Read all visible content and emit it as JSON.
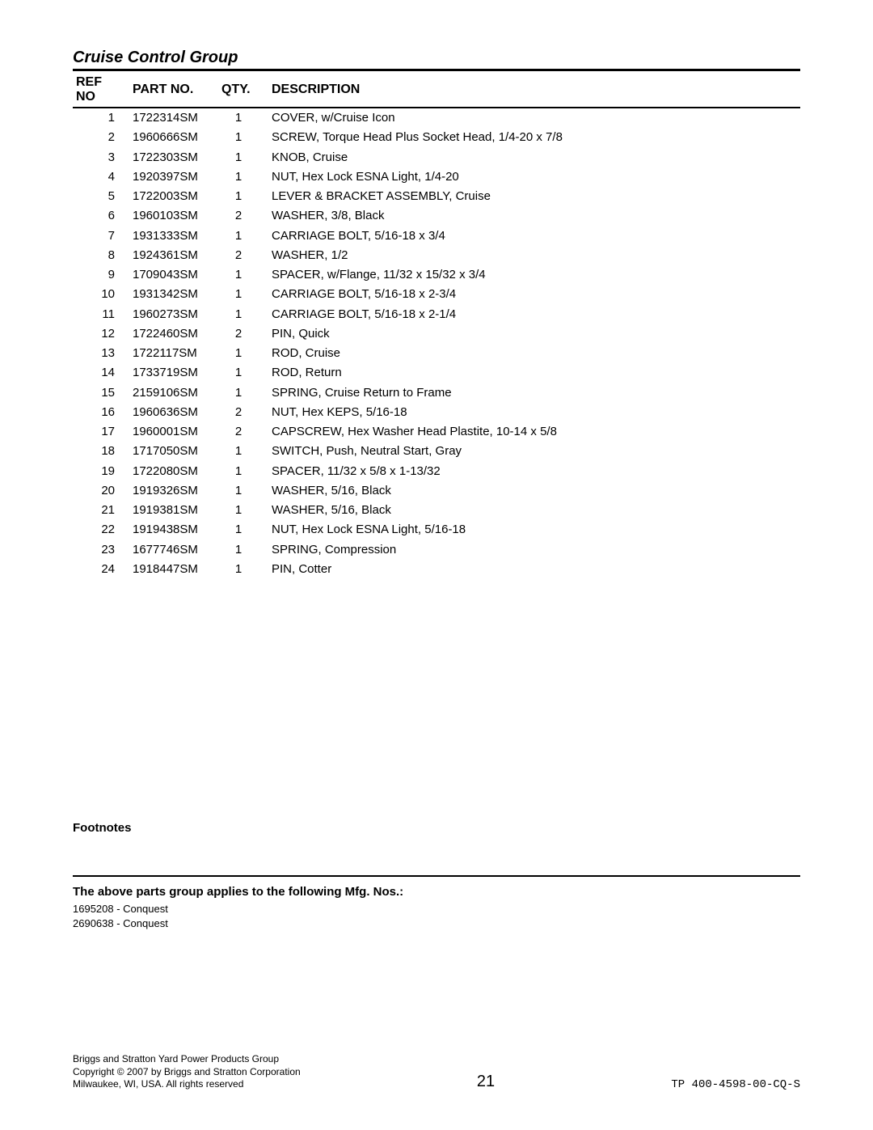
{
  "section_title": "Cruise Control Group",
  "table": {
    "headers": {
      "ref": "REF NO",
      "part": "PART NO.",
      "qty": "QTY.",
      "desc": "DESCRIPTION"
    },
    "col_widths": {
      "ref": 70,
      "part": 110,
      "qty": 50
    },
    "rows": [
      {
        "ref": "1",
        "part": "1722314SM",
        "qty": "1",
        "desc": "COVER, w/Cruise Icon"
      },
      {
        "ref": "2",
        "part": "1960666SM",
        "qty": "1",
        "desc": "SCREW, Torque Head Plus Socket Head, 1/4-20 x 7/8"
      },
      {
        "ref": "3",
        "part": "1722303SM",
        "qty": "1",
        "desc": "KNOB, Cruise"
      },
      {
        "ref": "4",
        "part": "1920397SM",
        "qty": "1",
        "desc": "NUT, Hex Lock ESNA Light, 1/4-20"
      },
      {
        "ref": "5",
        "part": "1722003SM",
        "qty": "1",
        "desc": "LEVER & BRACKET ASSEMBLY, Cruise"
      },
      {
        "ref": "6",
        "part": "1960103SM",
        "qty": "2",
        "desc": "WASHER, 3/8, Black"
      },
      {
        "ref": "7",
        "part": "1931333SM",
        "qty": "1",
        "desc": "CARRIAGE BOLT, 5/16-18 x 3/4"
      },
      {
        "ref": "8",
        "part": "1924361SM",
        "qty": "2",
        "desc": "WASHER, 1/2"
      },
      {
        "ref": "9",
        "part": "1709043SM",
        "qty": "1",
        "desc": "SPACER, w/Flange, 11/32 x 15/32 x 3/4"
      },
      {
        "ref": "10",
        "part": "1931342SM",
        "qty": "1",
        "desc": "CARRIAGE BOLT, 5/16-18 x 2-3/4"
      },
      {
        "ref": "11",
        "part": "1960273SM",
        "qty": "1",
        "desc": "CARRIAGE BOLT, 5/16-18 x 2-1/4"
      },
      {
        "ref": "12",
        "part": "1722460SM",
        "qty": "2",
        "desc": "PIN, Quick"
      },
      {
        "ref": "13",
        "part": "1722117SM",
        "qty": "1",
        "desc": "ROD, Cruise"
      },
      {
        "ref": "14",
        "part": "1733719SM",
        "qty": "1",
        "desc": "ROD, Return"
      },
      {
        "ref": "15",
        "part": "2159106SM",
        "qty": "1",
        "desc": "SPRING, Cruise Return to Frame"
      },
      {
        "ref": "16",
        "part": "1960636SM",
        "qty": "2",
        "desc": "NUT, Hex KEPS, 5/16-18"
      },
      {
        "ref": "17",
        "part": "1960001SM",
        "qty": "2",
        "desc": "CAPSCREW, Hex Washer Head Plastite, 10-14 x 5/8"
      },
      {
        "ref": "18",
        "part": "1717050SM",
        "qty": "1",
        "desc": "SWITCH, Push, Neutral Start, Gray"
      },
      {
        "ref": "19",
        "part": "1722080SM",
        "qty": "1",
        "desc": "SPACER, 11/32 x 5/8 x 1-13/32"
      },
      {
        "ref": "20",
        "part": "1919326SM",
        "qty": "1",
        "desc": "WASHER, 5/16, Black"
      },
      {
        "ref": "21",
        "part": "1919381SM",
        "qty": "1",
        "desc": "WASHER, 5/16, Black"
      },
      {
        "ref": "22",
        "part": "1919438SM",
        "qty": "1",
        "desc": "NUT, Hex Lock ESNA Light, 5/16-18"
      },
      {
        "ref": "23",
        "part": "1677746SM",
        "qty": "1",
        "desc": "SPRING, Compression"
      },
      {
        "ref": "24",
        "part": "1918447SM",
        "qty": "1",
        "desc": "PIN, Cotter"
      }
    ]
  },
  "footnotes": {
    "title": "Footnotes",
    "applies_title": "The above parts group applies to the following Mfg. Nos.:",
    "applies_list": [
      "1695208 - Conquest",
      "2690638 - Conquest"
    ]
  },
  "footer": {
    "left_lines": [
      "Briggs and Stratton Yard Power Products Group",
      "Copyright © 2007 by Briggs and Stratton Corporation",
      "Milwaukee, WI, USA. All rights reserved"
    ],
    "page_number": "21",
    "right_code": "TP 400-4598-00-CQ-S"
  },
  "styles": {
    "title_fontsize": 20,
    "body_fontsize": 15,
    "footer_fontsize": 12,
    "pagenum_fontsize": 20,
    "text_color": "#000000",
    "background_color": "#ffffff",
    "rule_color": "#000000"
  }
}
